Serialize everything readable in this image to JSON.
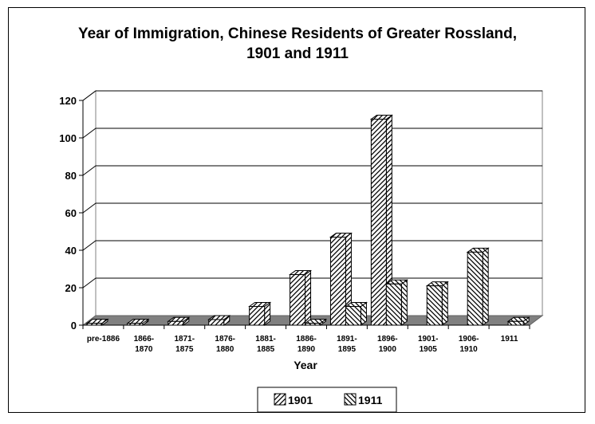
{
  "chart_data": {
    "type": "bar",
    "title_lines": [
      "Year of Immigration, Chinese Residents of Greater Rossland,",
      "1901 and 1911"
    ],
    "xlabel": "Year",
    "ylabel": "",
    "ylim": [
      0,
      120
    ],
    "yticks": [
      0,
      20,
      40,
      60,
      80,
      100,
      120
    ],
    "grid": true,
    "legend_position": "bottom",
    "categories": [
      [
        "pre-1886"
      ],
      [
        "1866-",
        "1870"
      ],
      [
        "1871-",
        "1875"
      ],
      [
        "1876-",
        "1880"
      ],
      [
        "1881-",
        "1885"
      ],
      [
        "1886-",
        "1890"
      ],
      [
        "1891-",
        "1895"
      ],
      [
        "1896-",
        "1900"
      ],
      [
        "1901-",
        "1905"
      ],
      [
        "1906-",
        "1910"
      ],
      [
        "1911"
      ]
    ],
    "series": [
      {
        "name": "1901",
        "values": [
          1,
          1,
          2,
          3,
          10,
          27,
          47,
          110,
          null,
          null,
          null
        ],
        "pattern": "diag-right"
      },
      {
        "name": "1911",
        "values": [
          null,
          null,
          null,
          null,
          null,
          1,
          10,
          22,
          21,
          39,
          2
        ],
        "pattern": "diag-left"
      }
    ]
  }
}
